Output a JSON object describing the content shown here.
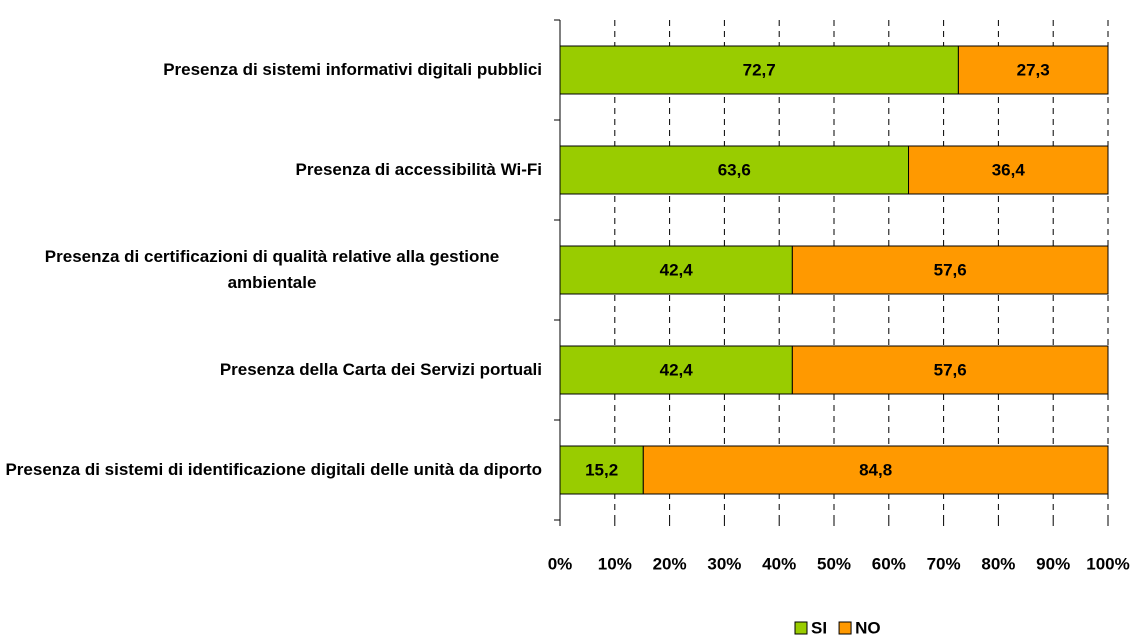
{
  "chart_data": {
    "type": "stacked-barh",
    "categories": [
      "Presenza di sistemi informativi digitali pubblici",
      "Presenza di accessibilità Wi-Fi",
      "Presenza di certificazioni di qualità relative alla gestione ambientale",
      "Presenza della Carta dei Servizi portuali",
      "Presenza di sistemi di identificazione digitali delle unità da diporto"
    ],
    "series": [
      {
        "name": "SI",
        "color": "#99cc00",
        "values": [
          72.7,
          63.6,
          42.4,
          42.4,
          15.2
        ],
        "value_labels": [
          "72,7",
          "63,6",
          "42,4",
          "42,4",
          "15,2"
        ]
      },
      {
        "name": "NO",
        "color": "#ff9900",
        "values": [
          27.3,
          36.4,
          57.6,
          57.6,
          84.8
        ],
        "value_labels": [
          "27,3",
          "36,4",
          "57,6",
          "57,6",
          "84,8"
        ]
      }
    ],
    "xlim": [
      0,
      100
    ],
    "xticks": [
      {
        "value": 0,
        "label": "0%"
      },
      {
        "value": 10,
        "label": "10%"
      },
      {
        "value": 20,
        "label": "20%"
      },
      {
        "value": 30,
        "label": "30%"
      },
      {
        "value": 40,
        "label": "40%"
      },
      {
        "value": 50,
        "label": "50%"
      },
      {
        "value": 60,
        "label": "60%"
      },
      {
        "value": 70,
        "label": "70%"
      },
      {
        "value": 80,
        "label": "80%"
      },
      {
        "value": 90,
        "label": "90%"
      },
      {
        "value": 100,
        "label": "100%"
      }
    ],
    "grid": true,
    "legend": "bottom"
  }
}
